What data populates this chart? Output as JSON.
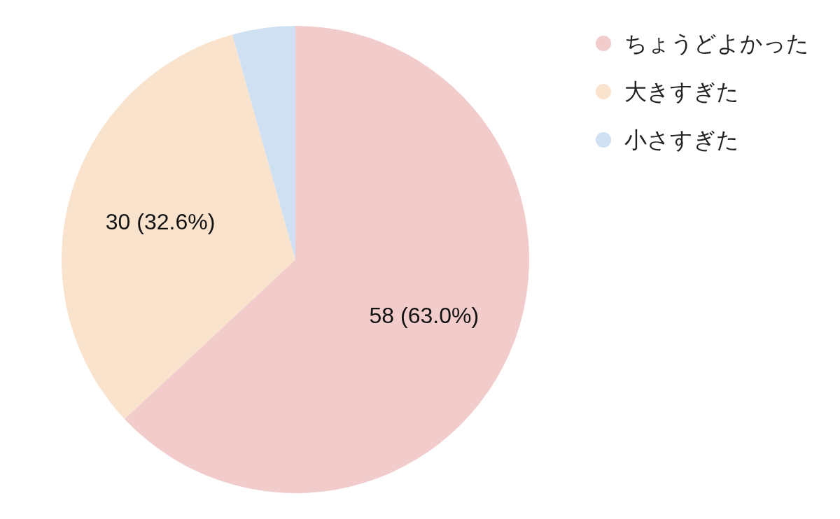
{
  "chart_data": {
    "type": "pie",
    "categories": [
      "ちょうどよかった",
      "大きすぎた",
      "小さすぎた"
    ],
    "values": [
      58,
      30,
      4
    ],
    "colors": [
      "#f2cbcb",
      "#fae3cd",
      "#cfe0f2"
    ],
    "value_labels": [
      "58 (63.0%)",
      "30 (32.6%)",
      null
    ],
    "legend": "top right"
  }
}
